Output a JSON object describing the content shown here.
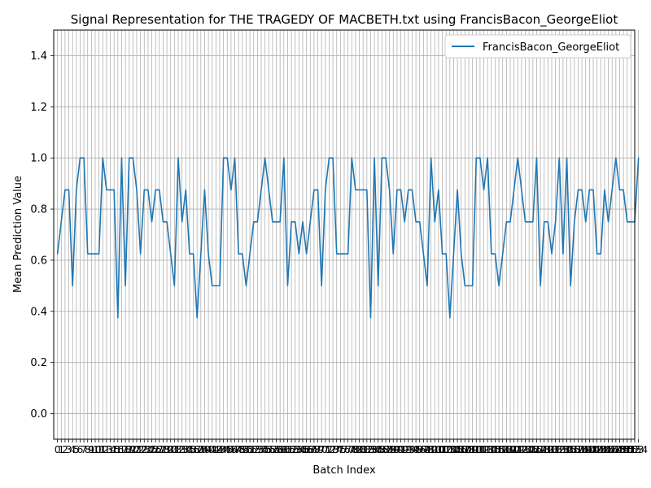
{
  "chart_data": {
    "type": "line",
    "title": "Signal Representation for THE TRAGEDY OF MACBETH.txt using FrancisBacon_GeorgeEliot",
    "xlabel": "Batch Index",
    "ylabel": "Mean Prediction Value",
    "ylim": [
      -0.1,
      1.5
    ],
    "xlim": [
      -1,
      153
    ],
    "grid": true,
    "legend_position": "top-right",
    "x_tick_labels_every_integer": true,
    "yticks": [
      "0.0",
      "0.2",
      "0.4",
      "0.6",
      "0.8",
      "1.0",
      "1.2",
      "1.4"
    ],
    "series": [
      {
        "name": "FrancisBacon_GeorgeEliot",
        "color": "#1f77b4",
        "values": [
          0.625,
          0.75,
          0.875,
          0.875,
          0.5,
          0.875,
          1.0,
          1.0,
          0.625,
          0.625,
          0.625,
          0.625,
          1.0,
          0.875,
          0.875,
          0.875,
          0.375,
          1.0,
          0.5,
          1.0,
          1.0,
          0.875,
          0.625,
          0.875,
          0.875,
          0.75,
          0.875,
          0.875,
          0.75,
          0.75,
          0.625,
          0.5,
          1.0,
          0.75,
          0.875,
          0.625,
          0.625,
          0.375,
          0.625,
          0.875,
          0.625,
          0.5,
          0.5,
          0.5,
          1.0,
          1.0,
          0.875,
          1.0,
          0.625,
          0.625,
          0.5,
          0.625,
          0.75,
          0.75,
          0.875,
          1.0,
          0.875,
          0.75,
          0.75,
          0.75,
          1.0,
          0.5,
          0.75,
          0.75,
          0.625,
          0.75,
          0.625,
          0.75,
          0.875,
          0.875,
          0.5,
          0.875,
          1.0,
          1.0,
          0.625,
          0.625,
          0.625,
          0.625,
          1.0,
          0.875,
          0.875,
          0.875,
          0.875,
          0.375,
          1.0,
          0.5,
          1.0,
          1.0,
          0.875,
          0.625,
          0.875,
          0.875,
          0.75,
          0.875,
          0.875,
          0.75,
          0.75,
          0.625,
          0.5,
          1.0,
          0.75,
          0.875,
          0.625,
          0.625,
          0.375,
          0.625,
          0.875,
          0.625,
          0.5,
          0.5,
          0.5,
          1.0,
          1.0,
          0.875,
          1.0,
          0.625,
          0.625,
          0.5,
          0.625,
          0.75,
          0.75,
          0.875,
          1.0,
          0.875,
          0.75,
          0.75,
          0.75,
          1.0,
          0.5,
          0.75,
          0.75,
          0.625,
          0.75,
          1.0,
          0.625,
          1.0,
          0.5,
          0.75,
          0.875,
          0.875,
          0.75,
          0.875,
          0.875,
          0.625,
          0.625,
          0.875,
          0.75,
          0.875,
          1.0,
          0.875,
          0.875,
          0.75,
          0.75,
          0.75,
          1.0
        ]
      }
    ]
  }
}
